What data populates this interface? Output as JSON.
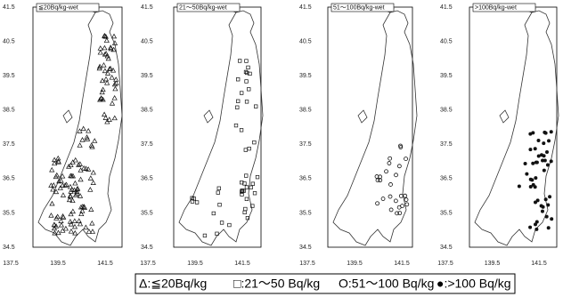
{
  "panels": [
    {
      "label": "≦20Bq/kg-wet",
      "yticks": [
        41.5,
        40.5,
        39.5,
        38.5,
        37.5,
        36.5,
        35.5,
        34.5
      ],
      "xticks": [
        137.5,
        139.5,
        141.5
      ]
    },
    {
      "label": "21～50Bq/kg-wet",
      "yticks": [
        41.5,
        40.5,
        39.5,
        38.5,
        37.5,
        36.5,
        35.5,
        34.5
      ],
      "xticks": [
        137.5,
        139.5,
        141.5
      ]
    },
    {
      "label": "51～100Bq/kg-wet",
      "yticks": [
        41.5,
        40.5,
        39.5,
        38.5,
        37.5,
        36.5,
        35.5,
        34.5
      ],
      "xticks": [
        137.5,
        139.5,
        141.5
      ]
    },
    {
      "label": ">100Bq/kg-wet",
      "yticks": [
        41.5,
        40.5,
        39.5,
        38.5,
        37.5,
        36.5,
        35.5,
        34.5
      ],
      "xticks": [
        137.5,
        139.5,
        141.5
      ]
    }
  ],
  "legend": [
    "Δ:≦20Bq/kg",
    "□:21～50 Bq/kg",
    "O:51～100 Bq/kg",
    "●:>100 Bq/kg"
  ]
}
